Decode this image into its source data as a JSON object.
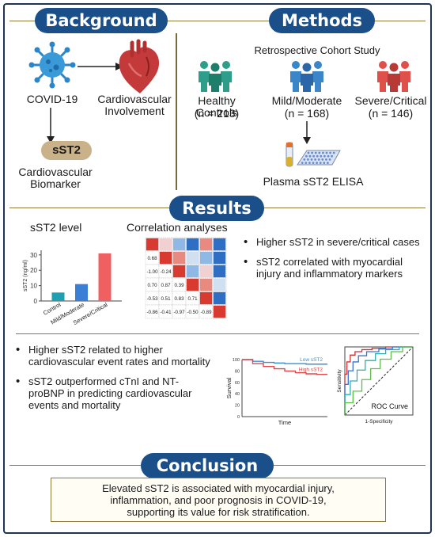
{
  "sections": {
    "background": "Background",
    "methods": "Methods",
    "results": "Results",
    "conclusion": "Conclusion"
  },
  "background": {
    "covid": "COVID-19",
    "cardio_line1": "Cardiovascular",
    "cardio_line2": "Involvement",
    "sst2": "sST2",
    "biomarker_line1": "Cardiovascular",
    "biomarker_line2": "Biomarker"
  },
  "methods": {
    "study": "Retrospective Cohort Study",
    "groups": [
      {
        "name": "Healthy Controls",
        "n": "(n = 213)",
        "color": "#2e9e8a"
      },
      {
        "name": "Mild/Moderate",
        "n": "(n = 168)",
        "color": "#3a86c8"
      },
      {
        "name": "Severe/Critical",
        "n": "(n = 146)",
        "color": "#e0504a"
      }
    ],
    "assay": "Plasma sST2 ELISA"
  },
  "results": {
    "bar_title": "sST2 level",
    "corr_title": "Correlation analyses",
    "bullets_top": [
      "Higher sST2 in severe/critical cases",
      "sST2 correlated with myocardial injury and inflammatory markers"
    ],
    "bullets_bottom": [
      "Higher sST2 related to higher cardiovascular event rates and mortality",
      "sST2 outperformed cTnI and NT-proBNP in predicting cardiovascular events and mortality"
    ],
    "corr_values": [
      "0.68",
      "-1.00",
      "-0.24",
      "0.70",
      "0.87",
      "0.39",
      "-0.53",
      "0.51",
      "0.83",
      "0.71",
      "-0.86",
      "-0.41",
      "-0.97",
      "-0.50",
      "-0.89"
    ]
  },
  "chart_data": [
    {
      "type": "bar",
      "title": "sST2 level",
      "categories": [
        "Control",
        "Mild/Moderate",
        "Severe/Critical"
      ],
      "values": [
        5.5,
        11,
        31
      ],
      "colors": [
        "#1f9fb0",
        "#3a7fd6",
        "#f06060"
      ],
      "ylabel": "sST2 (ng/ml)",
      "yticks": [
        0,
        10,
        20,
        30
      ],
      "ylim": [
        0,
        33
      ]
    },
    {
      "type": "line",
      "xlabel": "Time",
      "ylabel": "Survival",
      "yticks": [
        0,
        20,
        40,
        60,
        80,
        100
      ],
      "series": [
        {
          "name": "Low sST2",
          "color": "#3a8fd6",
          "y": [
            100,
            97,
            95,
            94,
            93,
            93,
            92,
            92,
            92
          ]
        },
        {
          "name": "High sST2",
          "color": "#e04848",
          "y": [
            100,
            93,
            88,
            84,
            80,
            77,
            75,
            74,
            74
          ]
        }
      ]
    },
    {
      "type": "line",
      "title": "ROC Curve",
      "xlabel": "1-Specificity",
      "ylabel": "Sensitivity",
      "series": [
        {
          "color": "#d03030",
          "x": [
            0,
            0.03,
            0.08,
            0.15,
            0.25,
            0.4,
            0.6,
            1
          ],
          "y": [
            0,
            0.6,
            0.78,
            0.88,
            0.93,
            0.96,
            0.98,
            1
          ]
        },
        {
          "color": "#3a6fd6",
          "x": [
            0,
            0.05,
            0.12,
            0.2,
            0.32,
            0.5,
            0.7,
            1
          ],
          "y": [
            0,
            0.45,
            0.65,
            0.78,
            0.87,
            0.93,
            0.97,
            1
          ]
        },
        {
          "color": "#28b0b0",
          "x": [
            0,
            0.08,
            0.18,
            0.3,
            0.45,
            0.6,
            0.8,
            1
          ],
          "y": [
            0,
            0.3,
            0.5,
            0.66,
            0.8,
            0.9,
            0.96,
            1
          ]
        },
        {
          "color": "#5cc048",
          "x": [
            0,
            0.12,
            0.25,
            0.38,
            0.52,
            0.68,
            0.85,
            1
          ],
          "y": [
            0,
            0.18,
            0.35,
            0.52,
            0.68,
            0.82,
            0.93,
            1
          ]
        }
      ]
    }
  ],
  "conclusion": {
    "line1": "Elevated sST2 is associated with myocardial injury,",
    "line2": "inflammation, and poor prognosis in COVID-19,",
    "line3": "supporting its value for risk stratification."
  }
}
